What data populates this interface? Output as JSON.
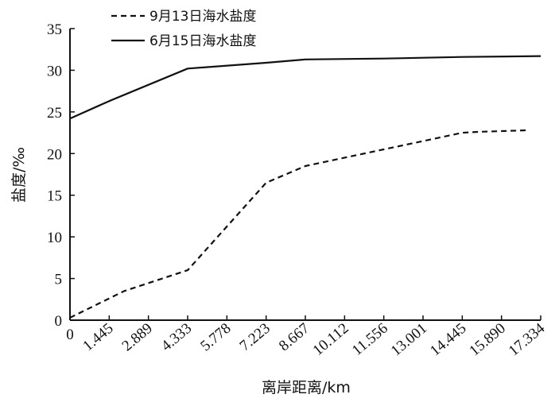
{
  "chart_data": {
    "type": "line",
    "xlabel": "离岸距离/km",
    "ylabel": "盐度/‰",
    "ylim": [
      0,
      35
    ],
    "yticks": [
      0,
      5,
      10,
      15,
      20,
      25,
      30,
      35
    ],
    "xticks": [
      "0",
      "1.445",
      "2.889",
      "4.333",
      "5.778",
      "7.223",
      "8.667",
      "10.112",
      "11.556",
      "13.001",
      "14.445",
      "15.890",
      "17.334"
    ],
    "xlim": [
      0,
      17.334
    ],
    "grid": false,
    "legend_position": "top-left",
    "series": [
      {
        "name": "9月13日海水盐度",
        "style": "dashed",
        "color": "#111111",
        "points": [
          {
            "x": 0,
            "y": 0.3
          },
          {
            "x": 2.0,
            "y": 3.5
          },
          {
            "x": 4.333,
            "y": 6.0
          },
          {
            "x": 7.223,
            "y": 16.5
          },
          {
            "x": 8.667,
            "y": 18.5
          },
          {
            "x": 11.556,
            "y": 20.5
          },
          {
            "x": 13.001,
            "y": 21.5
          },
          {
            "x": 14.445,
            "y": 22.5
          },
          {
            "x": 15.0,
            "y": 22.6
          },
          {
            "x": 16.9,
            "y": 22.8
          }
        ]
      },
      {
        "name": "6月15日海水盐度",
        "style": "solid",
        "color": "#111111",
        "points": [
          {
            "x": 0,
            "y": 24.2
          },
          {
            "x": 1.445,
            "y": 26.3
          },
          {
            "x": 4.333,
            "y": 30.2
          },
          {
            "x": 7.223,
            "y": 30.9
          },
          {
            "x": 8.667,
            "y": 31.3
          },
          {
            "x": 11.556,
            "y": 31.4
          },
          {
            "x": 14.445,
            "y": 31.6
          },
          {
            "x": 17.334,
            "y": 31.7
          }
        ]
      }
    ]
  }
}
